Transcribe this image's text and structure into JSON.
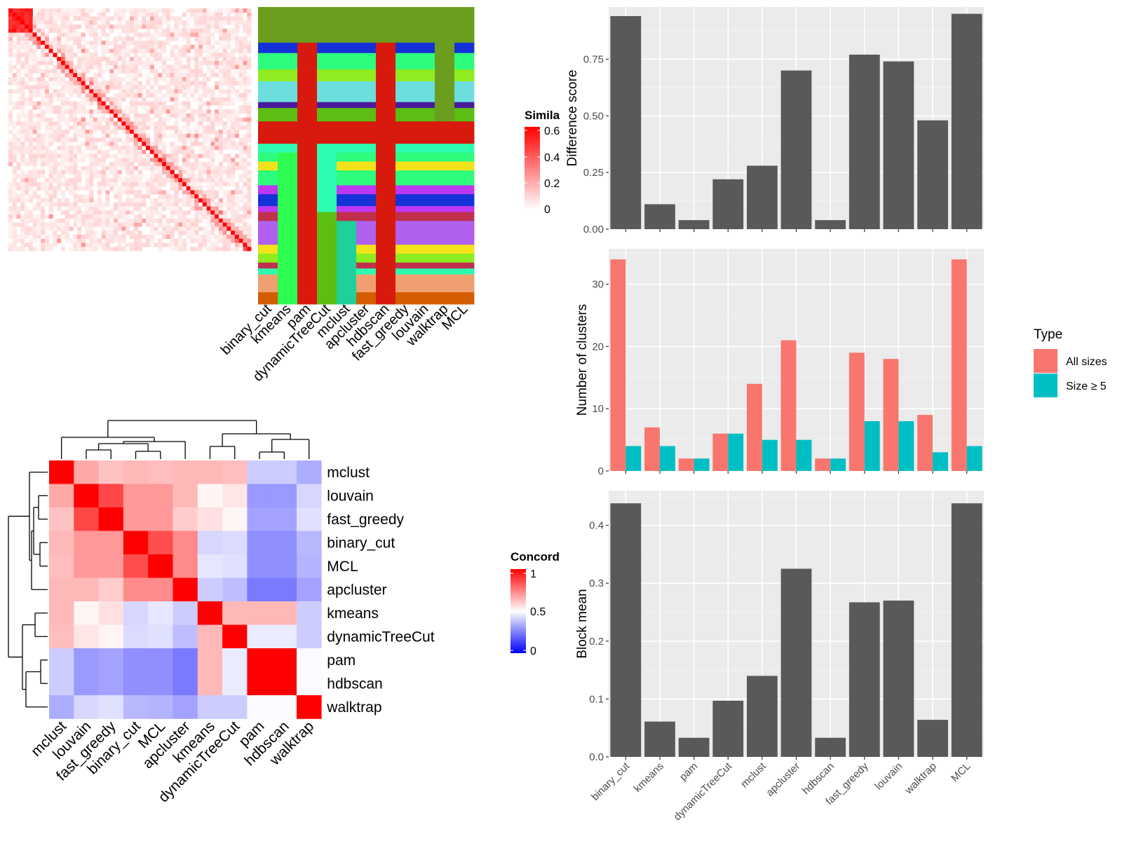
{
  "methods_order": [
    "binary_cut",
    "kmeans",
    "pam",
    "dynamicTreeCut",
    "mclust",
    "apcluster",
    "hdbscan",
    "fast_greedy",
    "louvain",
    "walktrap",
    "MCL"
  ],
  "colors": {
    "bar_dark": "#595959",
    "panel_bg": "#ebebeb",
    "grid": "#ffffff",
    "all_sizes": "#f8766d",
    "size_ge5": "#00bfc4",
    "sim_low": "#ffffff",
    "sim_high": "#ff0000",
    "conc_low": "#0000ff",
    "conc_mid": "#ffffff",
    "conc_high": "#ff0000"
  },
  "similarity_legend": {
    "title": "Simila",
    "ticks": [
      "0.6",
      "0.4",
      "0.2",
      "0"
    ]
  },
  "concordance_legend": {
    "title": "Concord",
    "ticks": [
      "1",
      "0.5",
      "0"
    ]
  },
  "cluster_label_axis": {
    "labels": [
      "binary_cut",
      "kmeans",
      "pam",
      "dynamicTreeCut",
      "mclust",
      "apcluster",
      "hdbscan",
      "fast_greedy",
      "louvain",
      "walktrap",
      "MCL"
    ]
  },
  "concordance_heatmap": {
    "order": [
      "mclust",
      "louvain",
      "fast_greedy",
      "binary_cut",
      "MCL",
      "apcluster",
      "kmeans",
      "dynamicTreeCut",
      "pam",
      "hdbscan",
      "walktrap"
    ],
    "matrix": [
      [
        1.0,
        0.67,
        0.62,
        0.64,
        0.63,
        0.64,
        0.64,
        0.63,
        0.4,
        0.4,
        0.34
      ],
      [
        0.67,
        1.0,
        0.86,
        0.7,
        0.7,
        0.64,
        0.52,
        0.55,
        0.3,
        0.3,
        0.42
      ],
      [
        0.62,
        0.86,
        1.0,
        0.7,
        0.7,
        0.6,
        0.56,
        0.52,
        0.32,
        0.32,
        0.44
      ],
      [
        0.64,
        0.7,
        0.7,
        1.0,
        0.85,
        0.73,
        0.42,
        0.43,
        0.28,
        0.28,
        0.36
      ],
      [
        0.63,
        0.7,
        0.7,
        0.85,
        1.0,
        0.73,
        0.45,
        0.44,
        0.28,
        0.28,
        0.35
      ],
      [
        0.64,
        0.64,
        0.6,
        0.73,
        0.73,
        1.0,
        0.4,
        0.37,
        0.24,
        0.24,
        0.32
      ],
      [
        0.64,
        0.52,
        0.56,
        0.42,
        0.45,
        0.4,
        1.0,
        0.64,
        0.64,
        0.64,
        0.4
      ],
      [
        0.63,
        0.55,
        0.52,
        0.43,
        0.44,
        0.37,
        0.64,
        1.0,
        0.46,
        0.46,
        0.4
      ],
      [
        0.4,
        0.3,
        0.32,
        0.28,
        0.28,
        0.24,
        0.64,
        0.46,
        1.0,
        1.0,
        0.49
      ],
      [
        0.4,
        0.3,
        0.32,
        0.28,
        0.28,
        0.24,
        0.64,
        0.46,
        1.0,
        1.0,
        0.49
      ],
      [
        0.34,
        0.42,
        0.44,
        0.36,
        0.35,
        0.32,
        0.4,
        0.4,
        0.49,
        0.49,
        1.0
      ]
    ]
  },
  "chart_data": [
    {
      "type": "bar",
      "title": "",
      "xlabel": "",
      "ylabel": "Difference score",
      "categories": [
        "binary_cut",
        "kmeans",
        "pam",
        "dynamicTreeCut",
        "mclust",
        "apcluster",
        "hdbscan",
        "fast_greedy",
        "louvain",
        "walktrap",
        "MCL"
      ],
      "values": [
        0.94,
        0.11,
        0.04,
        0.22,
        0.28,
        0.7,
        0.04,
        0.77,
        0.74,
        0.48,
        0.95
      ],
      "ylim": [
        0,
        0.98
      ],
      "yticks": [
        "0.00",
        "0.25",
        "0.50",
        "0.75"
      ],
      "grid": true
    },
    {
      "type": "bar",
      "title": "",
      "xlabel": "",
      "ylabel": "Number of clusters",
      "categories": [
        "binary_cut",
        "kmeans",
        "pam",
        "dynamicTreeCut",
        "mclust",
        "apcluster",
        "hdbscan",
        "fast_greedy",
        "louvain",
        "walktrap",
        "MCL"
      ],
      "legend_title": "Type",
      "legend_position": "right",
      "series": [
        {
          "name": "All sizes",
          "values": [
            34,
            7,
            2,
            6,
            14,
            21,
            2,
            19,
            18,
            9,
            34
          ]
        },
        {
          "name": "Size ≥ 5",
          "values": [
            4,
            4,
            2,
            6,
            5,
            5,
            2,
            8,
            8,
            3,
            4
          ]
        }
      ],
      "ylim": [
        0,
        35.7
      ],
      "yticks": [
        "0",
        "10",
        "20",
        "30"
      ],
      "grid": true
    },
    {
      "type": "bar",
      "title": "",
      "xlabel": "",
      "ylabel": "Block mean",
      "categories": [
        "binary_cut",
        "kmeans",
        "pam",
        "dynamicTreeCut",
        "mclust",
        "apcluster",
        "hdbscan",
        "fast_greedy",
        "louvain",
        "walktrap",
        "MCL"
      ],
      "values": [
        0.438,
        0.061,
        0.033,
        0.097,
        0.14,
        0.325,
        0.033,
        0.267,
        0.27,
        0.064,
        0.438
      ],
      "ylim": [
        0,
        0.46
      ],
      "yticks": [
        "0.0",
        "0.1",
        "0.2",
        "0.3",
        "0.4"
      ],
      "grid": true
    }
  ]
}
